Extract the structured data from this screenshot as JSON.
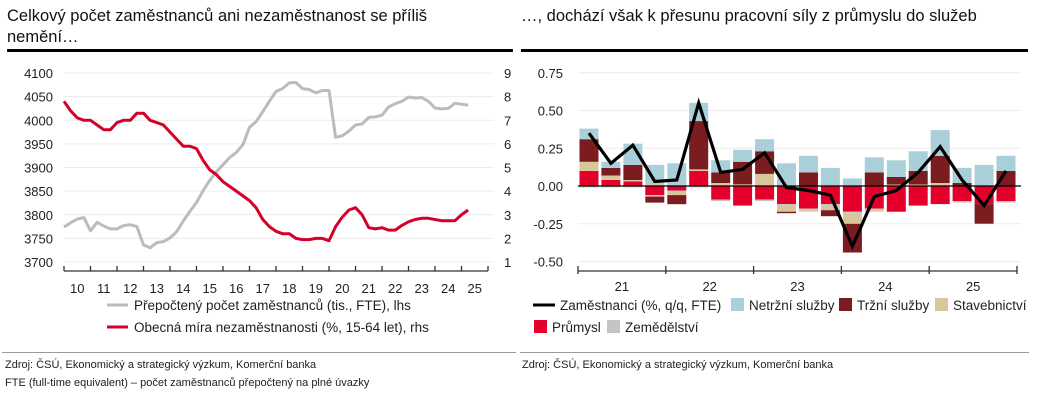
{
  "left_panel": {
    "title": "Celkový počet zaměstnanců ani nezaměstnanost se příliš nemění…",
    "source": "Zdroj: ČSÚ, Ekonomický a strategický výzkum, Komerční banka",
    "note": "FTE (full-time equivalent) – počet zaměstnanců přepočtený na plné úvazky"
  },
  "right_panel": {
    "title": "…, dochází však k přesunu pracovní síly z průmyslu do služeb",
    "source": "Zdroj: ČSÚ, Ekonomický a strategický výzkum, Komerční banka"
  },
  "chart_data": [
    {
      "type": "line",
      "title": "Celkový počet zaměstnanců ani nezaměstnanost se příliš nemění…",
      "x_ticks": [
        "10",
        "11",
        "12",
        "13",
        "14",
        "15",
        "16",
        "17",
        "18",
        "19",
        "20",
        "21",
        "22",
        "23",
        "24",
        "25"
      ],
      "x_range": [
        2010,
        2026
      ],
      "y_left": {
        "ticks": [
          "3700",
          "3750",
          "3800",
          "3850",
          "3900",
          "3950",
          "4000",
          "4050",
          "4100"
        ],
        "range": [
          3700,
          4100
        ]
      },
      "y_right": {
        "ticks": [
          "1",
          "2",
          "3",
          "4",
          "5",
          "6",
          "7",
          "8",
          "9"
        ],
        "range": [
          1,
          9
        ]
      },
      "grid": true,
      "legend_position": "bottom",
      "series": [
        {
          "name": "Přepočtený počet zaměstnanců (tis., FTE), lhs",
          "axis": "left",
          "color": "#bdbbbb",
          "x": [
            2010.0,
            2010.25,
            2010.5,
            2010.75,
            2011.0,
            2011.25,
            2011.5,
            2011.75,
            2012.0,
            2012.25,
            2012.5,
            2012.75,
            2013.0,
            2013.25,
            2013.5,
            2013.75,
            2014.0,
            2014.25,
            2014.5,
            2014.75,
            2015.0,
            2015.25,
            2015.5,
            2015.75,
            2016.0,
            2016.25,
            2016.5,
            2016.75,
            2017.0,
            2017.25,
            2017.5,
            2017.75,
            2018.0,
            2018.25,
            2018.5,
            2018.75,
            2019.0,
            2019.25,
            2019.5,
            2019.75,
            2020.0,
            2020.25,
            2020.5,
            2020.75,
            2021.0,
            2021.25,
            2021.5,
            2021.75,
            2022.0,
            2022.25,
            2022.5,
            2022.75,
            2023.0,
            2023.25,
            2023.5,
            2023.75,
            2024.0,
            2024.25,
            2024.5,
            2024.75,
            2025.0,
            2025.25
          ],
          "values": [
            3774,
            3783,
            3791,
            3794,
            3766,
            3784,
            3776,
            3770,
            3770,
            3777,
            3779,
            3775,
            3736,
            3730,
            3741,
            3743,
            3751,
            3764,
            3787,
            3807,
            3826,
            3851,
            3873,
            3891,
            3906,
            3921,
            3932,
            3948,
            3985,
            3997,
            4018,
            4040,
            4061,
            4067,
            4079,
            4080,
            4067,
            4065,
            4058,
            4063,
            4063,
            3964,
            3967,
            3977,
            3990,
            3992,
            4006,
            4007,
            4011,
            4028,
            4035,
            4040,
            4049,
            4047,
            4048,
            4040,
            4026,
            4024,
            4025,
            4036,
            4034,
            4032
          ]
        },
        {
          "name": "Obecná míra nezaměstnanosti (%, 15-64 let), rhs",
          "axis": "right",
          "color": "#d5002a",
          "x": [
            2010.0,
            2010.25,
            2010.5,
            2010.75,
            2011.0,
            2011.25,
            2011.5,
            2011.75,
            2012.0,
            2012.25,
            2012.5,
            2012.75,
            2013.0,
            2013.25,
            2013.5,
            2013.75,
            2014.0,
            2014.25,
            2014.5,
            2014.75,
            2015.0,
            2015.25,
            2015.5,
            2015.75,
            2016.0,
            2016.25,
            2016.5,
            2016.75,
            2017.0,
            2017.25,
            2017.5,
            2017.75,
            2018.0,
            2018.25,
            2018.5,
            2018.75,
            2019.0,
            2019.25,
            2019.5,
            2019.75,
            2020.0,
            2020.25,
            2020.5,
            2020.75,
            2021.0,
            2021.25,
            2021.5,
            2021.75,
            2022.0,
            2022.25,
            2022.5,
            2022.75,
            2023.0,
            2023.25,
            2023.5,
            2023.75,
            2024.0,
            2024.25,
            2024.5,
            2024.75,
            2025.0,
            2025.25
          ],
          "values": [
            7.8,
            7.4,
            7.1,
            7.0,
            7.0,
            6.8,
            6.6,
            6.6,
            6.9,
            7.0,
            7.0,
            7.3,
            7.3,
            7.0,
            6.9,
            6.8,
            6.5,
            6.2,
            5.9,
            5.9,
            5.8,
            5.3,
            4.9,
            4.7,
            4.4,
            4.2,
            4.0,
            3.8,
            3.6,
            3.3,
            2.8,
            2.5,
            2.3,
            2.2,
            2.2,
            2.0,
            1.95,
            1.95,
            2.0,
            2.0,
            1.9,
            2.5,
            2.9,
            3.2,
            3.3,
            3.0,
            2.45,
            2.4,
            2.45,
            2.35,
            2.35,
            2.55,
            2.7,
            2.8,
            2.85,
            2.85,
            2.8,
            2.75,
            2.75,
            2.75,
            3.0,
            3.2
          ]
        }
      ]
    },
    {
      "type": "bar",
      "stacked": true,
      "title": "…, dochází však k přesunu pracovní síly z průmyslu do služeb",
      "categories": [
        "21Q1",
        "21Q2",
        "21Q3",
        "21Q4",
        "22Q1",
        "22Q2",
        "22Q3",
        "22Q4",
        "23Q1",
        "23Q2",
        "23Q3",
        "23Q4",
        "24Q1",
        "24Q2",
        "24Q3",
        "24Q4",
        "25Q1",
        "25Q2",
        "25Q3",
        "25Q4"
      ],
      "x_ticks": [
        "21",
        "22",
        "23",
        "24",
        "25"
      ],
      "y_ticks": [
        "-0.50",
        "-0.25",
        "0.00",
        "0.25",
        "0.50",
        "0.75"
      ],
      "ylim": [
        -0.55,
        0.8
      ],
      "grid": true,
      "legend_position": "bottom",
      "series": [
        {
          "name": "Průmysl",
          "color": "#e4002b",
          "values": [
            0.1,
            0.04,
            0.03,
            -0.06,
            -0.03,
            0.1,
            -0.09,
            -0.13,
            -0.09,
            -0.12,
            -0.15,
            -0.12,
            -0.17,
            -0.15,
            -0.17,
            -0.13,
            -0.12,
            -0.1,
            -0.12,
            -0.1
          ]
        },
        {
          "name": "Zemědělství",
          "color": "#c6c3c4",
          "values": [
            -0.01,
            -0.01,
            -0.01,
            -0.01,
            -0.01,
            -0.01,
            -0.01,
            0.0,
            -0.01,
            -0.01,
            -0.01,
            -0.01,
            -0.01,
            -0.01,
            0.0,
            0.0,
            0.0,
            -0.01,
            0.0,
            -0.01
          ]
        },
        {
          "name": "Stavebnictví",
          "color": "#d9c79c",
          "values": [
            0.06,
            0.03,
            0.01,
            0.02,
            -0.02,
            0.01,
            0.02,
            0.01,
            0.08,
            -0.04,
            -0.01,
            -0.03,
            -0.07,
            -0.01,
            0.01,
            0.01,
            0.02,
            0.0,
            0.0,
            0.0
          ]
        },
        {
          "name": "Tržní služby",
          "color": "#7b1c20",
          "values": [
            0.15,
            0.05,
            0.1,
            -0.04,
            -0.06,
            0.32,
            0.07,
            0.15,
            0.15,
            -0.01,
            0.09,
            -0.04,
            -0.19,
            0.09,
            0.05,
            0.09,
            0.18,
            0.02,
            -0.13,
            0.1
          ]
        },
        {
          "name": "Netržní služby",
          "color": "#a9d0d8",
          "values": [
            0.07,
            0.04,
            0.14,
            0.12,
            0.15,
            0.12,
            0.08,
            0.08,
            0.08,
            0.15,
            0.11,
            0.12,
            0.05,
            0.1,
            0.11,
            0.13,
            0.17,
            0.1,
            0.14,
            0.1
          ]
        }
      ],
      "line_series": {
        "name": "Zaměstnanci (%, q/q, FTE)",
        "color": "#000000",
        "values": [
          0.35,
          0.15,
          0.27,
          0.03,
          0.04,
          0.55,
          0.09,
          0.11,
          0.22,
          -0.01,
          -0.03,
          -0.06,
          -0.4,
          -0.07,
          -0.03,
          0.09,
          0.26,
          0.04,
          -0.13,
          0.1
        ]
      }
    }
  ]
}
